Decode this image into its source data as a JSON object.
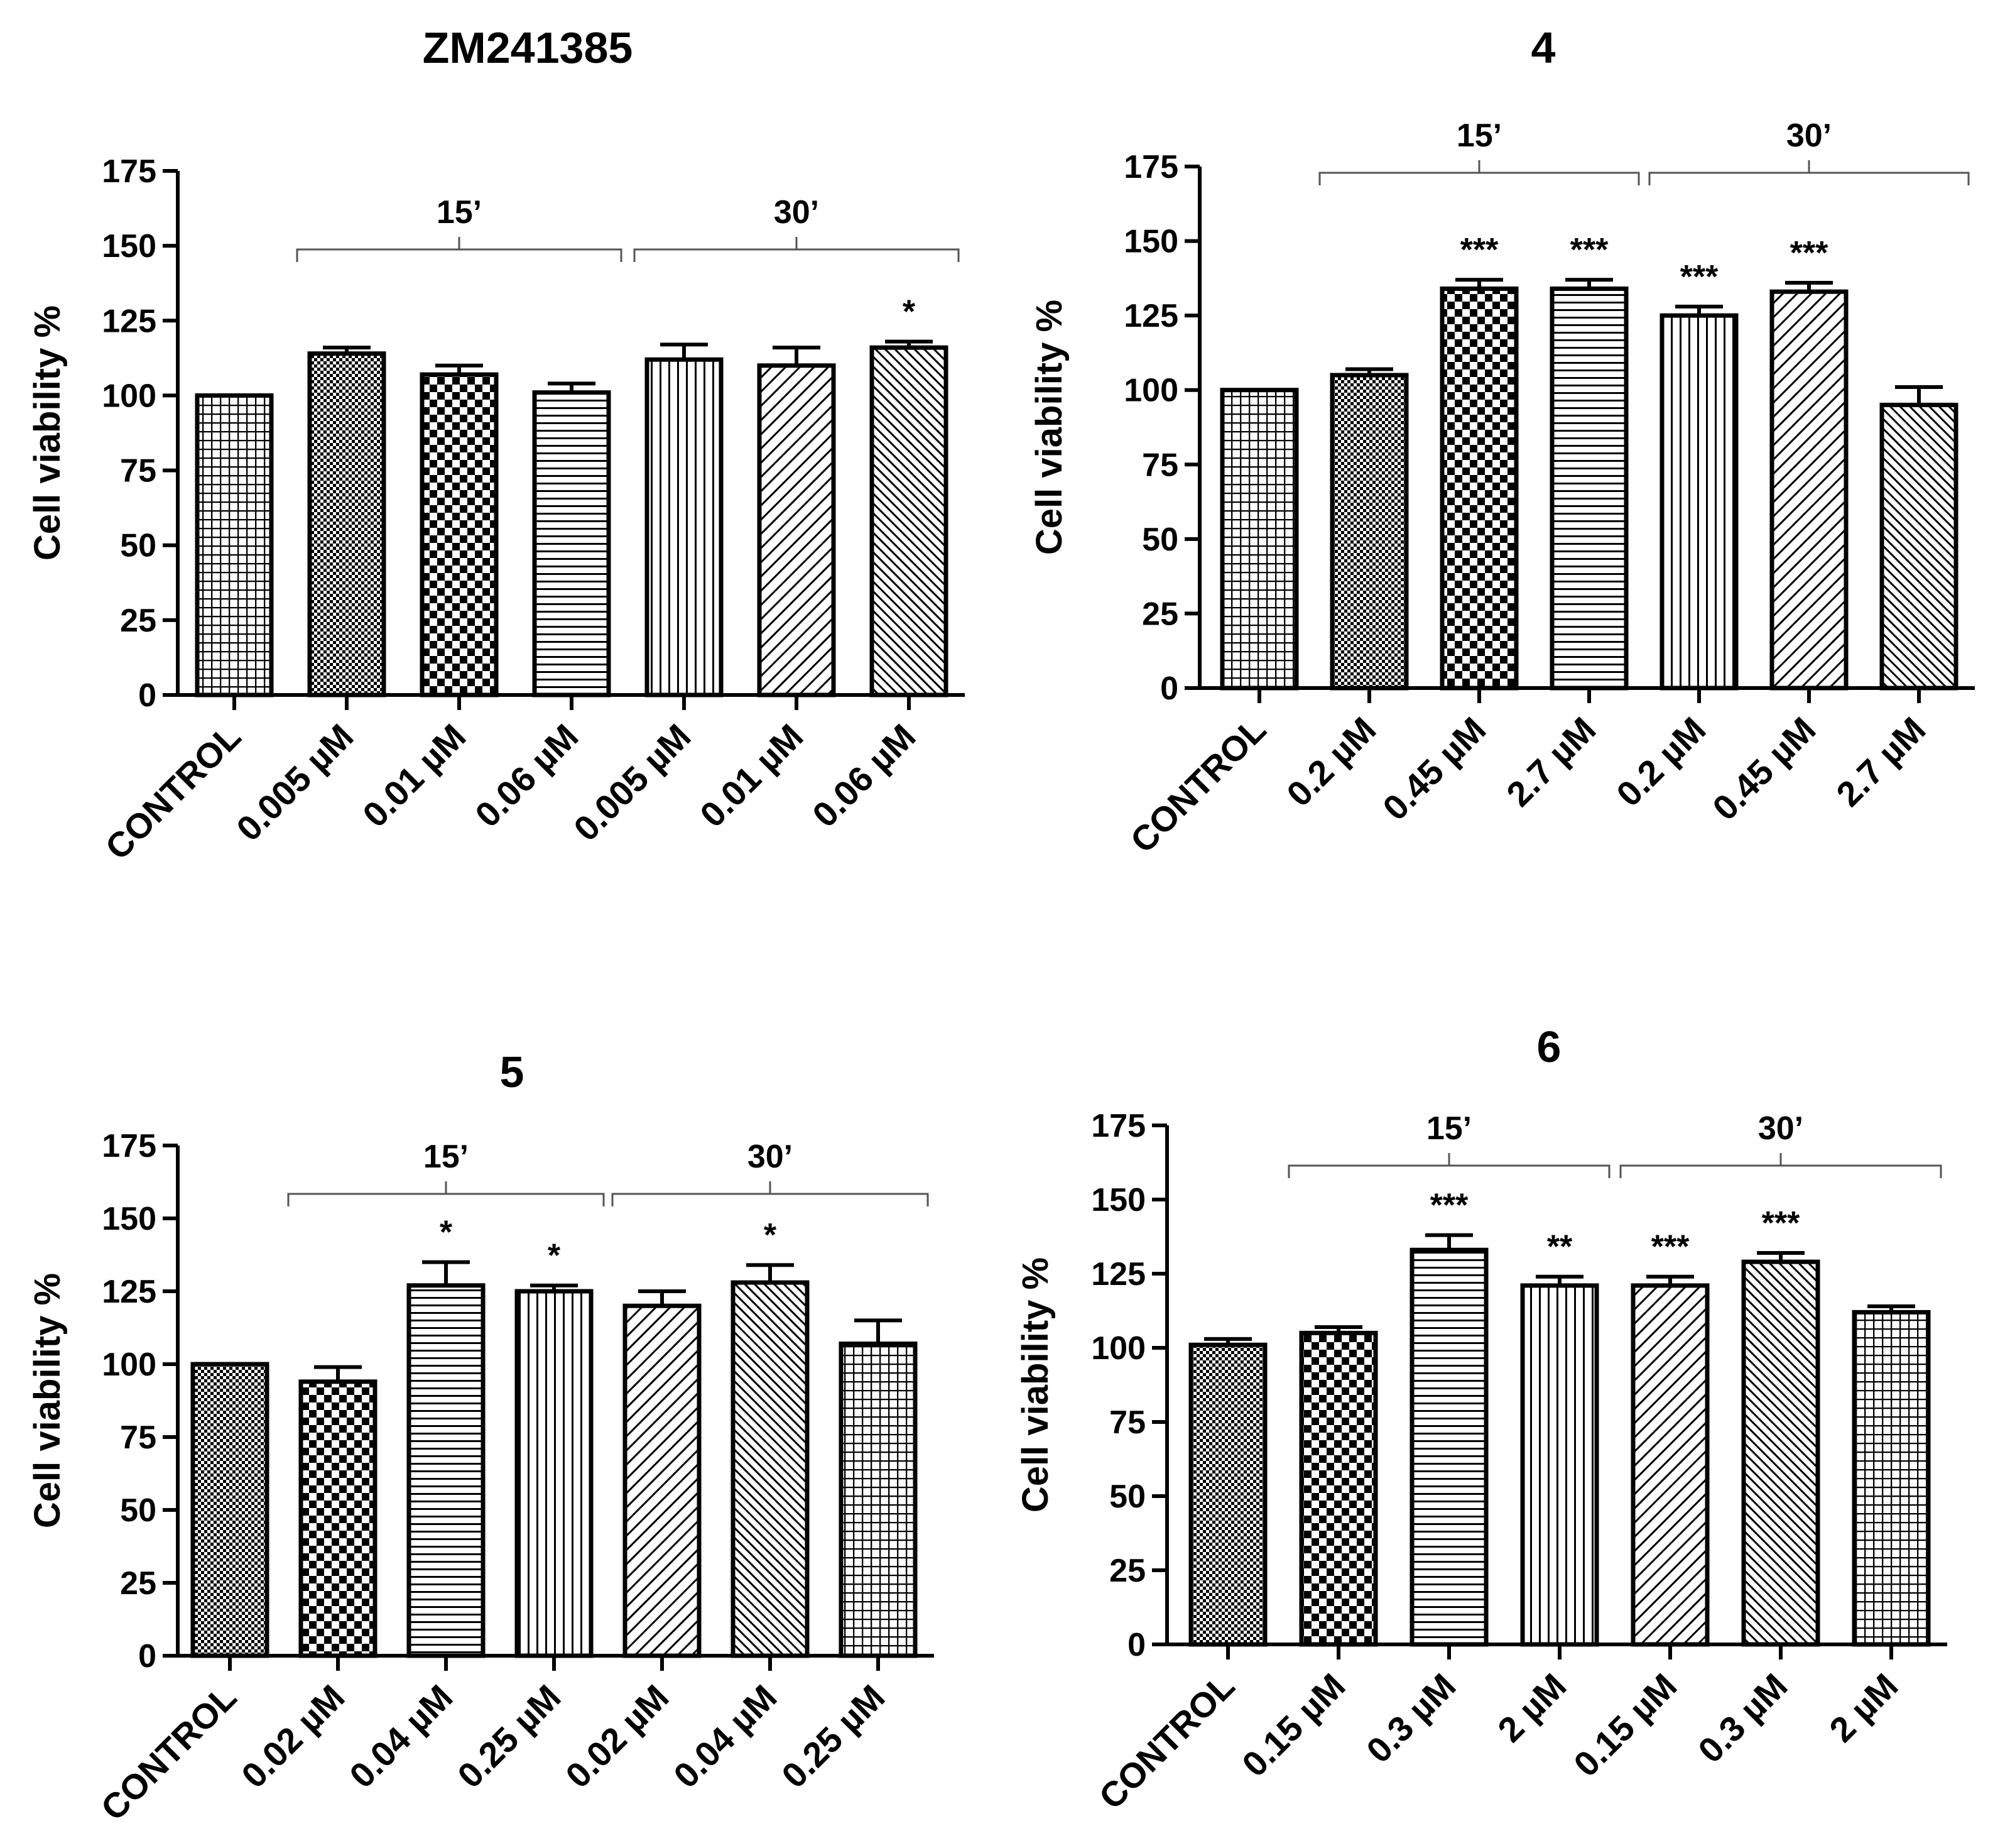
{
  "chart_data": [
    {
      "type": "bar",
      "title": "ZM241385",
      "xlabel": "",
      "ylabel": "Cell viability %",
      "ylim": [
        0,
        175
      ],
      "yticks": [
        0,
        25,
        50,
        75,
        100,
        125,
        150,
        175
      ],
      "categories": [
        "CONTROL",
        "0.005 µM",
        "0.01 µM",
        "0.06 µM",
        "0.005 µM",
        "0.01 µM",
        "0.06 µM"
      ],
      "values": [
        100,
        114,
        107,
        101,
        112,
        110,
        116
      ],
      "errors": [
        0,
        2,
        3,
        3,
        5,
        6,
        2
      ],
      "significance": [
        "",
        "",
        "",
        "",
        "",
        "",
        "*"
      ],
      "patterns": [
        "grid",
        "dots",
        "checker",
        "hlines",
        "vlines",
        "diag",
        "diag-dense"
      ],
      "groups": [
        {
          "label": "15’",
          "from": 1,
          "to": 3
        },
        {
          "label": "30’",
          "from": 4,
          "to": 6
        }
      ]
    },
    {
      "type": "bar",
      "title": "4",
      "xlabel": "",
      "ylabel": "Cell viability %",
      "ylim": [
        0,
        175
      ],
      "yticks": [
        0,
        25,
        50,
        75,
        100,
        125,
        150,
        175
      ],
      "categories": [
        "CONTROL",
        "0.2 µM",
        "0.45 µM",
        "2.7 µM",
        "0.2 µM",
        "0.45 µM",
        "2.7 µM"
      ],
      "values": [
        100,
        105,
        134,
        134,
        125,
        133,
        95
      ],
      "errors": [
        0,
        2,
        3,
        3,
        3,
        3,
        6
      ],
      "significance": [
        "",
        "",
        "***",
        "***",
        "***",
        "***",
        ""
      ],
      "patterns": [
        "grid",
        "dots",
        "checker",
        "hlines",
        "vlines",
        "diag",
        "diag-dense"
      ],
      "groups": [
        {
          "label": "15’",
          "from": 1,
          "to": 3
        },
        {
          "label": "30’",
          "from": 4,
          "to": 6
        }
      ]
    },
    {
      "type": "bar",
      "title": "5",
      "xlabel": "",
      "ylabel": "Cell viability %",
      "ylim": [
        0,
        175
      ],
      "yticks": [
        0,
        25,
        50,
        75,
        100,
        125,
        150,
        175
      ],
      "categories": [
        "CONTROL",
        "0.02 µM",
        "0.04 µM",
        "0.25 µM",
        "0.02 µM",
        "0.04 µM",
        "0.25 µM"
      ],
      "values": [
        100,
        94,
        127,
        125,
        120,
        128,
        107
      ],
      "errors": [
        0,
        5,
        8,
        2,
        5,
        6,
        8
      ],
      "significance": [
        "",
        "",
        "*",
        "*",
        "",
        "*",
        ""
      ],
      "patterns": [
        "dots",
        "checker",
        "hlines",
        "vlines",
        "diag",
        "diag-dense",
        "grid"
      ],
      "groups": [
        {
          "label": "15’",
          "from": 1,
          "to": 3
        },
        {
          "label": "30’",
          "from": 4,
          "to": 6
        }
      ]
    },
    {
      "type": "bar",
      "title": "6",
      "xlabel": "",
      "ylabel": "Cell viability %",
      "ylim": [
        0,
        175
      ],
      "yticks": [
        0,
        25,
        50,
        75,
        100,
        125,
        150,
        175
      ],
      "categories": [
        "CONTROL",
        "0.15 µM",
        "0.3 µM",
        "2 µM",
        "0.15 µM",
        "0.3 µM",
        "2 µM"
      ],
      "values": [
        101,
        105,
        133,
        121,
        121,
        129,
        112
      ],
      "errors": [
        2,
        2,
        5,
        3,
        3,
        3,
        2
      ],
      "significance": [
        "",
        "",
        "***",
        "**",
        "***",
        "***",
        ""
      ],
      "patterns": [
        "dots",
        "checker",
        "hlines",
        "vlines",
        "diag",
        "diag-dense",
        "grid"
      ],
      "groups": [
        {
          "label": "15’",
          "from": 1,
          "to": 3
        },
        {
          "label": "30’",
          "from": 4,
          "to": 6
        }
      ]
    }
  ]
}
